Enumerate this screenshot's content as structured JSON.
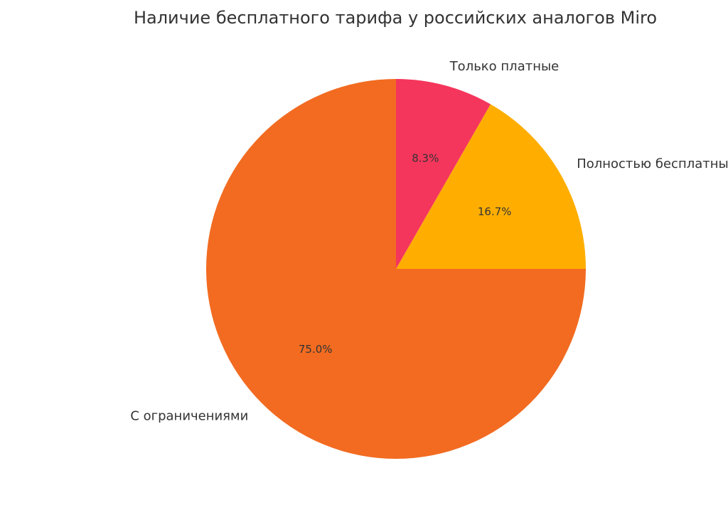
{
  "chart_data": {
    "type": "pie",
    "title": "Наличие бесплатного тарифа у российских аналогов Miro",
    "slices": [
      {
        "label": "С ограничениями",
        "value": 75.0,
        "pct_label": "75.0%",
        "color": "#f26b21"
      },
      {
        "label": "Полностью бесплатные",
        "value": 16.7,
        "pct_label": "16.7%",
        "color": "#ffae00"
      },
      {
        "label": "Только платные",
        "value": 8.3,
        "pct_label": "8.3%",
        "color": "#f5365c"
      }
    ],
    "start_angle_deg": 90,
    "direction": "counterclockwise"
  }
}
